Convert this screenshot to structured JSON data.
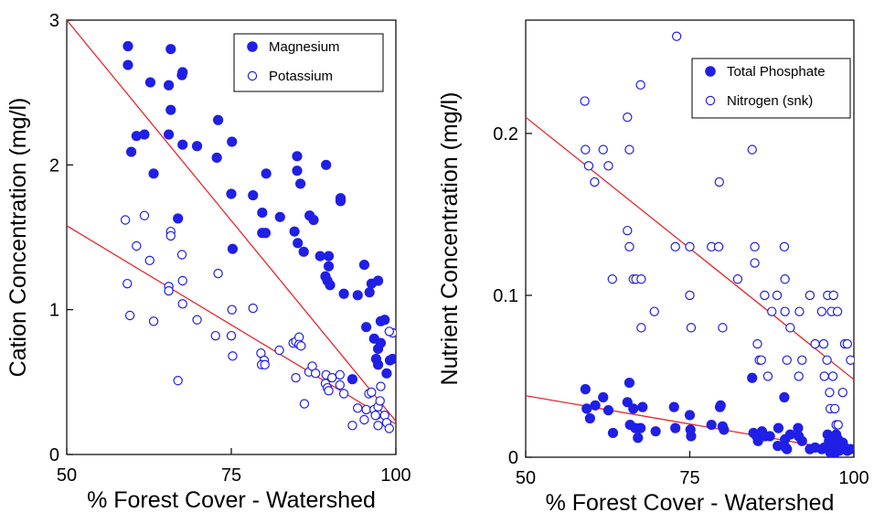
{
  "chart_data": [
    {
      "type": "scatter",
      "xlabel": "% Forest Cover - Watershed",
      "ylabel": "Cation Concentration (mg/l)",
      "xlim": [
        50,
        100
      ],
      "ylim": [
        0,
        3
      ],
      "xticks": [
        "50",
        "75",
        "100"
      ],
      "yticks": [
        "0",
        "1",
        "2",
        "3"
      ],
      "legend_position": "top-right",
      "series": [
        {
          "name": "Magnesium",
          "marker": "filled-circle",
          "color": "#1f1fe6",
          "points": [
            [
              59.3,
              2.82
            ],
            [
              59.3,
              2.69
            ],
            [
              59.8,
              2.09
            ],
            [
              60.6,
              2.2
            ],
            [
              61.8,
              2.21
            ],
            [
              62.7,
              2.57
            ],
            [
              63.2,
              1.94
            ],
            [
              65.5,
              2.55
            ],
            [
              65.8,
              2.8
            ],
            [
              65.8,
              2.38
            ],
            [
              65.5,
              2.21
            ],
            [
              66.9,
              1.63
            ],
            [
              67.5,
              2.62
            ],
            [
              67.6,
              2.64
            ],
            [
              67.6,
              2.14
            ],
            [
              69.8,
              2.13
            ],
            [
              72.8,
              2.05
            ],
            [
              73.0,
              2.31
            ],
            [
              75.1,
              2.16
            ],
            [
              75.0,
              1.8
            ],
            [
              75.2,
              1.42
            ],
            [
              78.3,
              1.79
            ],
            [
              79.7,
              1.67
            ],
            [
              80.3,
              1.94
            ],
            [
              79.7,
              1.53
            ],
            [
              80.2,
              1.53
            ],
            [
              82.4,
              1.64
            ],
            [
              84.6,
              1.54
            ],
            [
              85.0,
              2.06
            ],
            [
              85.0,
              1.96
            ],
            [
              85.5,
              1.87
            ],
            [
              85.1,
              1.46
            ],
            [
              86.0,
              1.4
            ],
            [
              86.9,
              1.65
            ],
            [
              87.5,
              1.62
            ],
            [
              88.5,
              1.37
            ],
            [
              89.4,
              2.0
            ],
            [
              89.8,
              1.37
            ],
            [
              89.8,
              1.3
            ],
            [
              89.3,
              1.23
            ],
            [
              89.6,
              1.2
            ],
            [
              90.0,
              1.17
            ],
            [
              91.6,
              1.75
            ],
            [
              91.6,
              1.77
            ],
            [
              92.1,
              1.11
            ],
            [
              93.4,
              0.52
            ],
            [
              94.2,
              1.1
            ],
            [
              95.2,
              1.31
            ],
            [
              95.5,
              0.88
            ],
            [
              96.0,
              1.12
            ],
            [
              96.3,
              1.18
            ],
            [
              96.7,
              0.8
            ],
            [
              97.0,
              0.66
            ],
            [
              97.3,
              0.73
            ],
            [
              97.3,
              1.2
            ],
            [
              97.7,
              0.92
            ],
            [
              97.3,
              0.62
            ],
            [
              97.7,
              0.77
            ],
            [
              98.3,
              0.93
            ],
            [
              98.6,
              0.56
            ],
            [
              99.1,
              0.65
            ],
            [
              99.5,
              0.66
            ]
          ],
          "fit": [
            [
              50,
              3.0
            ],
            [
              100,
              0.23
            ]
          ]
        },
        {
          "name": "Potassium",
          "marker": "open-circle",
          "color": "#1f1fe6",
          "points": [
            [
              58.9,
              1.62
            ],
            [
              59.2,
              1.18
            ],
            [
              59.6,
              0.96
            ],
            [
              60.6,
              1.44
            ],
            [
              61.8,
              1.65
            ],
            [
              62.6,
              1.34
            ],
            [
              63.2,
              0.92
            ],
            [
              65.5,
              1.16
            ],
            [
              65.5,
              1.13
            ],
            [
              65.8,
              1.54
            ],
            [
              65.8,
              1.51
            ],
            [
              66.9,
              0.51
            ],
            [
              67.5,
              1.38
            ],
            [
              67.6,
              1.2
            ],
            [
              67.6,
              1.04
            ],
            [
              69.8,
              0.93
            ],
            [
              72.6,
              0.82
            ],
            [
              73.0,
              1.25
            ],
            [
              75.1,
              1.0
            ],
            [
              75.0,
              0.82
            ],
            [
              75.2,
              0.68
            ],
            [
              78.3,
              1.01
            ],
            [
              79.5,
              0.7
            ],
            [
              80.0,
              0.65
            ],
            [
              79.6,
              0.62
            ],
            [
              80.1,
              0.62
            ],
            [
              82.3,
              0.72
            ],
            [
              84.4,
              0.77
            ],
            [
              84.8,
              0.78
            ],
            [
              84.8,
              0.53
            ],
            [
              85.3,
              0.81
            ],
            [
              85.3,
              0.76
            ],
            [
              85.6,
              0.75
            ],
            [
              86.1,
              0.35
            ],
            [
              86.8,
              0.57
            ],
            [
              87.3,
              0.61
            ],
            [
              87.8,
              0.56
            ],
            [
              89.4,
              0.55
            ],
            [
              89.3,
              0.49
            ],
            [
              89.6,
              0.46
            ],
            [
              89.8,
              0.44
            ],
            [
              90.3,
              0.53
            ],
            [
              91.5,
              0.55
            ],
            [
              91.5,
              0.48
            ],
            [
              92.1,
              0.42
            ],
            [
              93.4,
              0.2
            ],
            [
              94.2,
              0.32
            ],
            [
              95.2,
              0.24
            ],
            [
              95.5,
              0.31
            ],
            [
              95.9,
              0.42
            ],
            [
              96.3,
              0.43
            ],
            [
              96.7,
              0.31
            ],
            [
              97.0,
              0.27
            ],
            [
              97.3,
              0.28
            ],
            [
              97.3,
              0.33
            ],
            [
              97.6,
              0.37
            ],
            [
              97.3,
              0.2
            ],
            [
              97.7,
              0.47
            ],
            [
              98.3,
              0.27
            ],
            [
              98.6,
              0.22
            ],
            [
              99.0,
              0.18
            ],
            [
              99.5,
              0.84
            ],
            [
              99.0,
              0.85
            ],
            [
              96.9,
              0.27
            ]
          ],
          "fit": [
            [
              50,
              1.58
            ],
            [
              100,
              0.21
            ]
          ]
        }
      ]
    },
    {
      "type": "scatter",
      "xlabel": "% Forest Cover - Watershed",
      "ylabel": "Nutrient Concentration (mg/l)",
      "xlim": [
        50,
        100
      ],
      "ylim": [
        0,
        0.27
      ],
      "xticks": [
        "50",
        "75",
        "100"
      ],
      "yticks": [
        "0",
        "0.1",
        "0.2"
      ],
      "legend_position": "top-right",
      "series": [
        {
          "name": "Total Phosphate",
          "marker": "filled-circle",
          "color": "#1f1fe6",
          "points": [
            [
              59.1,
              0.042
            ],
            [
              59.3,
              0.03
            ],
            [
              59.8,
              0.024
            ],
            [
              60.6,
              0.032
            ],
            [
              61.8,
              0.037
            ],
            [
              62.6,
              0.029
            ],
            [
              63.3,
              0.015
            ],
            [
              65.5,
              0.034
            ],
            [
              65.8,
              0.046
            ],
            [
              65.9,
              0.02
            ],
            [
              66.4,
              0.03
            ],
            [
              66.7,
              0.018
            ],
            [
              67.1,
              0.012
            ],
            [
              67.5,
              0.018
            ],
            [
              67.8,
              0.031
            ],
            [
              69.8,
              0.016
            ],
            [
              72.6,
              0.031
            ],
            [
              72.8,
              0.018
            ],
            [
              75.0,
              0.026
            ],
            [
              75.1,
              0.017
            ],
            [
              75.2,
              0.013
            ],
            [
              78.3,
              0.02
            ],
            [
              79.7,
              0.032
            ],
            [
              79.6,
              0.031
            ],
            [
              80.2,
              0.017
            ],
            [
              80.0,
              0.019
            ],
            [
              84.5,
              0.049
            ],
            [
              84.7,
              0.015
            ],
            [
              85.2,
              0.013
            ],
            [
              85.4,
              0.01
            ],
            [
              86.0,
              0.016
            ],
            [
              86.5,
              0.013
            ],
            [
              87.2,
              0.013
            ],
            [
              88.4,
              0.007
            ],
            [
              88.5,
              0.018
            ],
            [
              89.4,
              0.037
            ],
            [
              89.5,
              0.011
            ],
            [
              89.6,
              0.006
            ],
            [
              89.8,
              0.005
            ],
            [
              90.3,
              0.014
            ],
            [
              91.5,
              0.018
            ],
            [
              91.6,
              0.013
            ],
            [
              92.1,
              0.01
            ],
            [
              93.3,
              0.005
            ],
            [
              94.1,
              0.006
            ],
            [
              95.1,
              0.005
            ],
            [
              95.5,
              0.006
            ],
            [
              96.0,
              0.014
            ],
            [
              96.2,
              0.01
            ],
            [
              96.4,
              0.003
            ],
            [
              96.7,
              0.009
            ],
            [
              96.9,
              0.006
            ],
            [
              97.2,
              0.003
            ],
            [
              97.3,
              0.014
            ],
            [
              97.6,
              0.011
            ],
            [
              97.3,
              0.006
            ],
            [
              97.8,
              0.004
            ],
            [
              98.3,
              0.009
            ],
            [
              98.6,
              0.006
            ],
            [
              99.0,
              0.004
            ],
            [
              99.5,
              0.005
            ]
          ],
          "fit": [
            [
              50,
              0.038
            ],
            [
              100,
              0.003
            ]
          ]
        },
        {
          "name": "Nitrogen (snk)",
          "marker": "open-circle",
          "color": "#1f1fe6",
          "points": [
            [
              59.0,
              0.22
            ],
            [
              59.1,
              0.19
            ],
            [
              59.6,
              0.18
            ],
            [
              60.5,
              0.17
            ],
            [
              61.8,
              0.19
            ],
            [
              62.6,
              0.18
            ],
            [
              63.2,
              0.11
            ],
            [
              65.5,
              0.21
            ],
            [
              65.8,
              0.19
            ],
            [
              65.5,
              0.14
            ],
            [
              65.8,
              0.13
            ],
            [
              66.4,
              0.11
            ],
            [
              66.8,
              0.11
            ],
            [
              67.5,
              0.23
            ],
            [
              67.6,
              0.08
            ],
            [
              67.6,
              0.11
            ],
            [
              69.6,
              0.09
            ],
            [
              72.8,
              0.13
            ],
            [
              73.0,
              0.26
            ],
            [
              75.0,
              0.13
            ],
            [
              75.0,
              0.1
            ],
            [
              75.2,
              0.08
            ],
            [
              78.3,
              0.13
            ],
            [
              79.4,
              0.13
            ],
            [
              79.5,
              0.17
            ],
            [
              80.0,
              0.08
            ],
            [
              82.3,
              0.11
            ],
            [
              84.5,
              0.19
            ],
            [
              84.9,
              0.13
            ],
            [
              84.9,
              0.12
            ],
            [
              85.3,
              0.07
            ],
            [
              85.6,
              0.06
            ],
            [
              85.9,
              0.06
            ],
            [
              86.4,
              0.1
            ],
            [
              86.9,
              0.05
            ],
            [
              87.5,
              0.09
            ],
            [
              88.3,
              0.1
            ],
            [
              89.4,
              0.13
            ],
            [
              89.5,
              0.11
            ],
            [
              89.5,
              0.09
            ],
            [
              89.8,
              0.06
            ],
            [
              90.3,
              0.08
            ],
            [
              91.6,
              0.05
            ],
            [
              91.7,
              0.09
            ],
            [
              92.1,
              0.06
            ],
            [
              93.3,
              0.1
            ],
            [
              94.1,
              0.07
            ],
            [
              95.1,
              0.09
            ],
            [
              95.4,
              0.07
            ],
            [
              95.5,
              0.05
            ],
            [
              95.9,
              0.06
            ],
            [
              96.0,
              0.1
            ],
            [
              96.3,
              0.04
            ],
            [
              96.4,
              0.03
            ],
            [
              96.6,
              0.09
            ],
            [
              96.8,
              0.05
            ],
            [
              96.9,
              0.1
            ],
            [
              97.1,
              0.03
            ],
            [
              97.3,
              0.02
            ],
            [
              97.6,
              0.02
            ],
            [
              97.5,
              0.09
            ],
            [
              98.3,
              0.04
            ],
            [
              98.6,
              0.07
            ],
            [
              99.0,
              0.07
            ],
            [
              99.5,
              0.06
            ]
          ],
          "fit": [
            [
              50,
              0.21
            ],
            [
              100,
              0.048
            ]
          ]
        }
      ]
    }
  ]
}
